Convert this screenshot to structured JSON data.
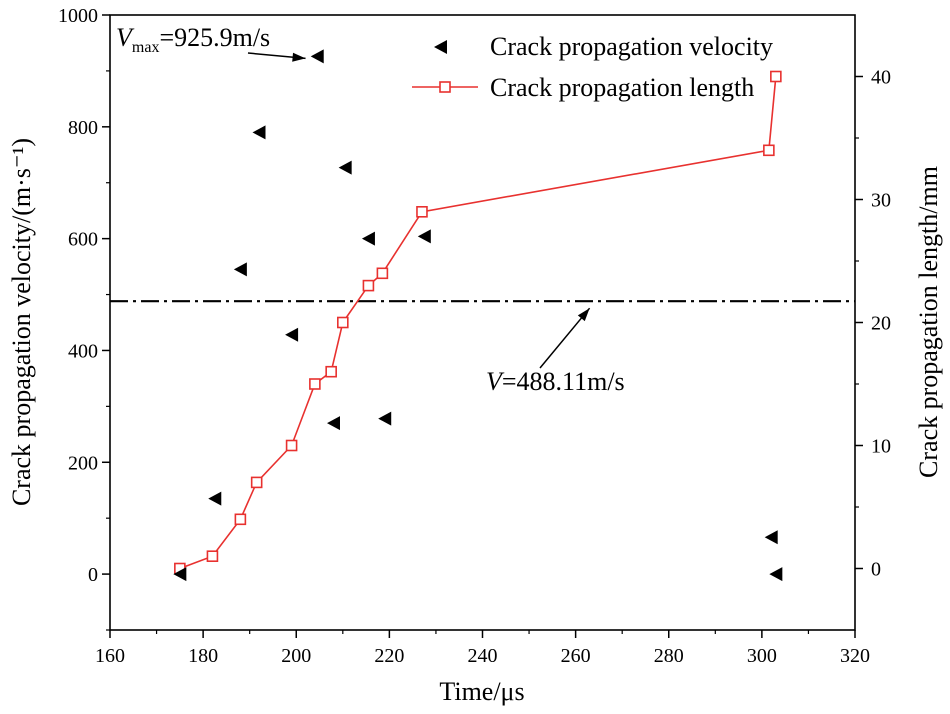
{
  "chart_data": {
    "type": "scatter+line",
    "xlabel": "Time/μs",
    "ylabel_left": "Crack propagation velocity/(m·s⁻¹)",
    "ylabel_right": "Crack propagation length/mm",
    "xlim": [
      160,
      320
    ],
    "ylim_left": [
      -100,
      1000
    ],
    "ylim_right": [
      -5,
      45
    ],
    "x_ticks": [
      160,
      180,
      200,
      220,
      240,
      260,
      280,
      300,
      320
    ],
    "y_ticks_left": [
      0,
      200,
      400,
      600,
      800,
      1000
    ],
    "y_ticks_right": [
      0,
      10,
      20,
      30,
      40
    ],
    "legend_position": "top-right",
    "series": [
      {
        "name": "Crack propagation velocity",
        "kind": "scatter",
        "marker": "left-triangle",
        "color": "#000000",
        "axis": "left",
        "x": [
          175.0,
          182.5,
          188.0,
          192.0,
          199.0,
          204.5,
          208.0,
          210.5,
          215.5,
          219.0,
          227.5,
          302.0,
          303.0
        ],
        "y": [
          0,
          135,
          545,
          790,
          428,
          925.9,
          270,
          727,
          600,
          278,
          604,
          66,
          0
        ]
      },
      {
        "name": "Crack propagation length",
        "kind": "line",
        "marker": "open-square",
        "color": "#e8312f",
        "axis": "right",
        "x": [
          175.0,
          182.0,
          188.0,
          191.5,
          199.0,
          204.0,
          207.5,
          210.0,
          215.5,
          218.5,
          227.0,
          301.5,
          303.0
        ],
        "y": [
          0,
          1,
          4,
          7,
          10,
          15,
          16,
          20,
          23,
          24,
          29,
          34,
          40
        ]
      }
    ],
    "reference_line": {
      "y": 488.11,
      "style": "dash-dot",
      "color": "#000000"
    },
    "annotations": {
      "vmax": {
        "symbol": "V",
        "subscript": "max",
        "text": "=925.9m/s",
        "x": 203.5,
        "y": 925.9
      },
      "vavg": {
        "symbol": "V",
        "text": "=488.11m/s",
        "x": 263,
        "y": 488.11
      }
    }
  }
}
